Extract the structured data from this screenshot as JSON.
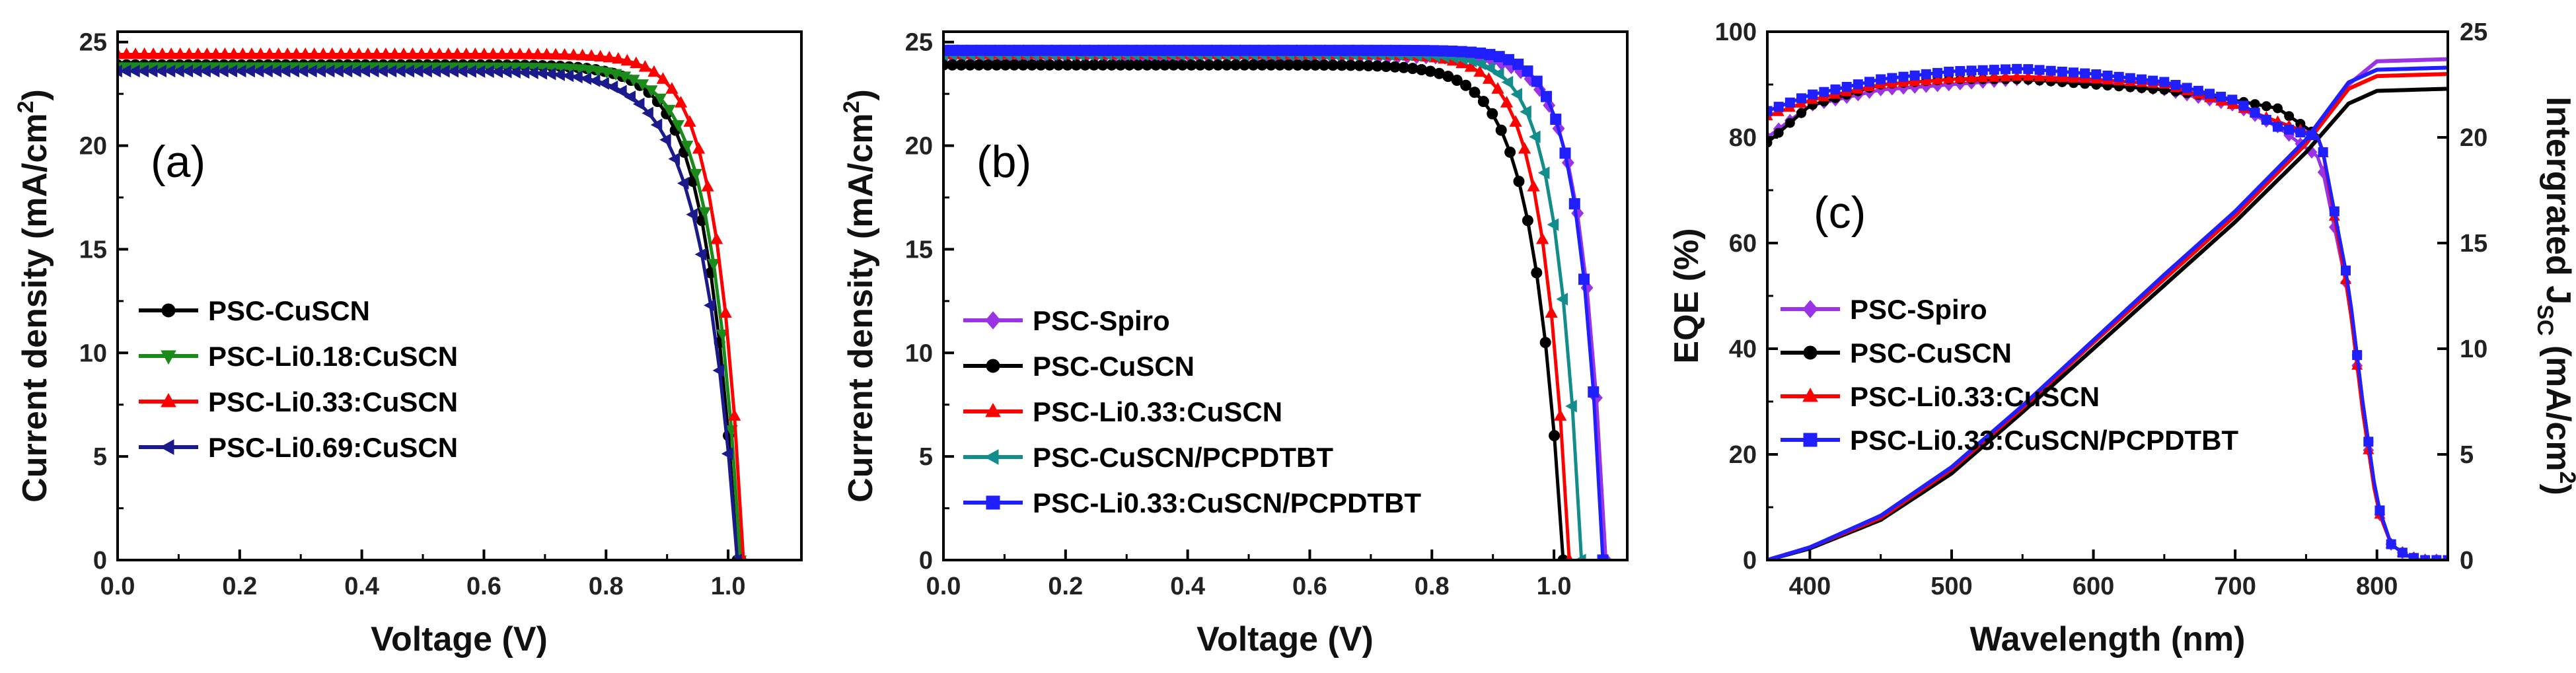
{
  "chart_data": [
    {
      "type": "line",
      "panel_label": "(a)",
      "xlabel": "Voltage (V)",
      "ylabel": "Current density (mA/cm",
      "ylabel_sup": "2",
      "ylabel_close": ")",
      "xlim": [
        0,
        1.12
      ],
      "ylim": [
        0,
        25.5
      ],
      "xticks": [
        0.0,
        0.2,
        0.4,
        0.6,
        0.8,
        1.0
      ],
      "xtick_labels": [
        "0.0",
        "0.2",
        "0.4",
        "0.6",
        "0.8",
        "1.0"
      ],
      "yticks": [
        0,
        5,
        10,
        15,
        20,
        25
      ],
      "ytick_labels": [
        "0",
        "5",
        "10",
        "15",
        "20",
        "25"
      ],
      "series": [
        {
          "name": "PSC-CuSCN",
          "color": "#000000",
          "marker": "circle",
          "jsc": 23.9,
          "voc": 1.015,
          "n": 1.95
        },
        {
          "name": "PSC-Li0.18:CuSCN",
          "color": "#1a8a1a",
          "marker": "triangle-down",
          "jsc": 23.8,
          "voc": 1.02,
          "n": 1.85
        },
        {
          "name": "PSC-Li0.33:CuSCN",
          "color": "#ff0000",
          "marker": "triangle-up",
          "jsc": 24.4,
          "voc": 1.025,
          "n": 1.7
        },
        {
          "name": "PSC-Li0.69:CuSCN",
          "color": "#1a1a8c",
          "marker": "triangle-left",
          "jsc": 23.6,
          "voc": 1.015,
          "n": 2.3
        }
      ]
    },
    {
      "type": "line",
      "panel_label": "(b)",
      "xlabel": "Voltage (V)",
      "ylabel": "Current density (mA/cm",
      "ylabel_sup": "2",
      "ylabel_close": ")",
      "xlim": [
        0,
        1.12
      ],
      "ylim": [
        0,
        25.5
      ],
      "xticks": [
        0.0,
        0.2,
        0.4,
        0.6,
        0.8,
        1.0
      ],
      "xtick_labels": [
        "0.0",
        "0.2",
        "0.4",
        "0.6",
        "0.8",
        "1.0"
      ],
      "yticks": [
        0,
        5,
        10,
        15,
        20,
        25
      ],
      "ytick_labels": [
        "0",
        "5",
        "10",
        "15",
        "20",
        "25"
      ],
      "series": [
        {
          "name": "PSC-Spiro",
          "color": "#9a32e6",
          "marker": "diamond",
          "jsc": 24.3,
          "voc": 1.085,
          "n": 1.55
        },
        {
          "name": "PSC-CuSCN",
          "color": "#000000",
          "marker": "circle",
          "jsc": 23.9,
          "voc": 1.015,
          "n": 1.95
        },
        {
          "name": "PSC-Li0.33:CuSCN",
          "color": "#ff0000",
          "marker": "triangle-up",
          "jsc": 24.4,
          "voc": 1.025,
          "n": 1.7
        },
        {
          "name": "PSC-CuSCN/PCPDTBT",
          "color": "#138c8c",
          "marker": "triangle-left",
          "jsc": 24.4,
          "voc": 1.045,
          "n": 1.6
        },
        {
          "name": "PSC-Li0.33:CuSCN/PCPDTBT",
          "color": "#1f1fff",
          "marker": "square",
          "jsc": 24.6,
          "voc": 1.08,
          "n": 1.5
        }
      ]
    },
    {
      "type": "line",
      "panel_label": "(c)",
      "xlabel": "Wavelength (nm)",
      "ylabel": "EQE (%)",
      "ylabel_right": "Intergrated J",
      "ylabel_right_sub": "SC",
      "ylabel_right_tail": " (mA/cm",
      "ylabel_right_sup": "2",
      "ylabel_right_close": ")",
      "xlim": [
        370,
        850
      ],
      "ylim": [
        0,
        100
      ],
      "ylim_right": [
        0,
        25
      ],
      "xticks": [
        400,
        500,
        600,
        700,
        800
      ],
      "xtick_labels": [
        "400",
        "500",
        "600",
        "700",
        "800"
      ],
      "yticks": [
        0,
        20,
        40,
        60,
        80,
        100
      ],
      "ytick_labels": [
        "0",
        "20",
        "40",
        "60",
        "80",
        "100"
      ],
      "yticks_right": [
        0,
        5,
        10,
        15,
        20,
        25
      ],
      "ytick_labels_right": [
        "0",
        "5",
        "10",
        "15",
        "20",
        "25"
      ],
      "series": [
        {
          "name": "PSC-Spiro",
          "color": "#9a32e6",
          "marker": "diamond",
          "eqe_x": [
            370,
            400,
            450,
            500,
            550,
            600,
            650,
            700,
            730,
            760,
            780,
            790,
            800,
            810,
            820,
            830,
            850
          ],
          "eqe_y": [
            80,
            86,
            89,
            90,
            91,
            90.5,
            89,
            86,
            82,
            76,
            50,
            28,
            10,
            3,
            1,
            0,
            0
          ],
          "jsc_x": [
            370,
            400,
            450,
            500,
            550,
            600,
            650,
            700,
            750,
            780,
            800,
            850
          ],
          "jsc_y": [
            0.0,
            0.6,
            2.0,
            4.3,
            7.2,
            10.3,
            13.3,
            16.3,
            19.7,
            22.5,
            23.6,
            23.7
          ]
        },
        {
          "name": "PSC-CuSCN",
          "color": "#000000",
          "marker": "circle",
          "eqe_x": [
            370,
            400,
            450,
            500,
            550,
            600,
            650,
            700,
            730,
            760,
            780,
            790,
            800,
            810,
            820,
            830,
            850
          ],
          "eqe_y": [
            79,
            86,
            90,
            91,
            91,
            90,
            89,
            87,
            85.5,
            80,
            52,
            30,
            11,
            3,
            1,
            0,
            0
          ],
          "jsc_x": [
            370,
            400,
            450,
            500,
            550,
            600,
            650,
            700,
            750,
            780,
            800,
            850
          ],
          "jsc_y": [
            0.0,
            0.55,
            1.9,
            4.1,
            7.0,
            10.0,
            13.0,
            16.0,
            19.3,
            21.6,
            22.2,
            22.3
          ]
        },
        {
          "name": "PSC-Li0.33:CuSCN",
          "color": "#ff0000",
          "marker": "triangle-up",
          "eqe_x": [
            370,
            400,
            450,
            500,
            550,
            600,
            650,
            700,
            730,
            760,
            780,
            790,
            800,
            810,
            820,
            830,
            850
          ],
          "eqe_y": [
            84,
            87,
            90,
            91,
            91.5,
            91,
            90,
            86,
            83,
            80,
            50,
            28,
            10,
            3,
            1,
            0,
            0
          ],
          "jsc_x": [
            370,
            400,
            450,
            500,
            550,
            600,
            650,
            700,
            750,
            780,
            800,
            850
          ],
          "jsc_y": [
            0.0,
            0.6,
            2.0,
            4.3,
            7.2,
            10.3,
            13.3,
            16.3,
            19.7,
            22.3,
            22.9,
            23.0
          ]
        },
        {
          "name": "PSC-Li0.33:CuSCN/PCPDTBT",
          "color": "#1f1fff",
          "marker": "square",
          "eqe_x": [
            370,
            400,
            450,
            500,
            550,
            600,
            650,
            700,
            730,
            760,
            780,
            790,
            800,
            810,
            820,
            830,
            850
          ],
          "eqe_y": [
            85,
            88,
            91,
            92.5,
            93,
            92,
            90.5,
            87,
            82,
            80,
            52,
            30,
            11,
            3,
            1,
            0,
            0
          ],
          "jsc_x": [
            370,
            400,
            450,
            500,
            550,
            600,
            650,
            700,
            750,
            780,
            800,
            850
          ],
          "jsc_y": [
            0.0,
            0.6,
            2.1,
            4.4,
            7.3,
            10.4,
            13.5,
            16.5,
            19.9,
            22.6,
            23.2,
            23.3
          ]
        }
      ]
    }
  ]
}
